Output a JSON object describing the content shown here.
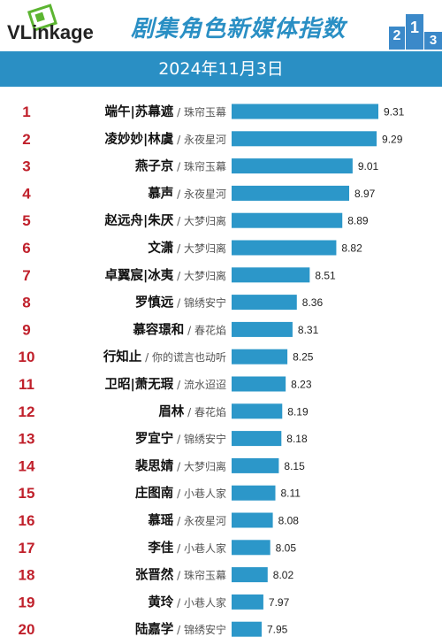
{
  "header": {
    "logo_text": "VLinkage",
    "title": "剧集角色新媒体指数",
    "podium": [
      "2",
      "1",
      "3"
    ]
  },
  "banner": {
    "date": "2024年11月3日"
  },
  "colors": {
    "bar": "#2c97c9",
    "rank": "#c0202b",
    "accent": "#2a8fc4"
  },
  "chart_data": {
    "type": "bar",
    "orientation": "horizontal",
    "title": "剧集角色新媒体指数",
    "subtitle": "2024年11月3日",
    "rows": [
      {
        "rank": "1",
        "role": "端午|苏幕遮",
        "show": "珠帘玉幕",
        "value": 9.31
      },
      {
        "rank": "2",
        "role": "凌妙妙|林虞",
        "show": "永夜星河",
        "value": 9.29
      },
      {
        "rank": "3",
        "role": "燕子京",
        "show": "珠帘玉幕",
        "value": 9.01
      },
      {
        "rank": "4",
        "role": "慕声",
        "show": "永夜星河",
        "value": 8.97
      },
      {
        "rank": "5",
        "role": "赵远舟|朱厌",
        "show": "大梦归离",
        "value": 8.89
      },
      {
        "rank": "6",
        "role": "文潇",
        "show": "大梦归离",
        "value": 8.82
      },
      {
        "rank": "7",
        "role": "卓翼宸|冰夷",
        "show": "大梦归离",
        "value": 8.51
      },
      {
        "rank": "8",
        "role": "罗慎远",
        "show": "锦绣安宁",
        "value": 8.36
      },
      {
        "rank": "9",
        "role": "慕容璟和",
        "show": "春花焰",
        "value": 8.31
      },
      {
        "rank": "10",
        "role": "行知止",
        "show": "你的谎言也动听",
        "value": 8.25
      },
      {
        "rank": "11",
        "role": "卫昭|萧无瑕",
        "show": "流水迢迢",
        "value": 8.23
      },
      {
        "rank": "12",
        "role": "眉林",
        "show": "春花焰",
        "value": 8.19
      },
      {
        "rank": "13",
        "role": "罗宜宁",
        "show": "锦绣安宁",
        "value": 8.18
      },
      {
        "rank": "14",
        "role": "裴思婧",
        "show": "大梦归离",
        "value": 8.15
      },
      {
        "rank": "15",
        "role": "庄图南",
        "show": "小巷人家",
        "value": 8.11
      },
      {
        "rank": "16",
        "role": "慕瑶",
        "show": "永夜星河",
        "value": 8.08
      },
      {
        "rank": "17",
        "role": "李佳",
        "show": "小巷人家",
        "value": 8.05
      },
      {
        "rank": "18",
        "role": "张晋然",
        "show": "珠帘玉幕",
        "value": 8.02
      },
      {
        "rank": "19",
        "role": "黄玲",
        "show": "小巷人家",
        "value": 7.97
      },
      {
        "rank": "20",
        "role": "陆嘉学",
        "show": "锦绣安宁",
        "value": 7.95
      }
    ],
    "xlim": [
      7.6,
      9.31
    ],
    "grid": false,
    "legend": "none"
  }
}
